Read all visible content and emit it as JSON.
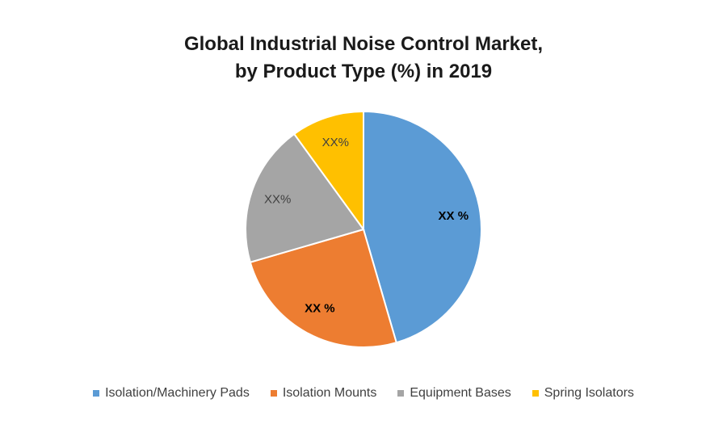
{
  "chart_data": {
    "type": "pie",
    "title_lines": [
      "Global Industrial Noise Control Market,",
      "by Product Type (%) in 2019"
    ],
    "slices": [
      {
        "name": "Isolation/Machinery Pads",
        "value": 45.5,
        "label": "XX %",
        "color": "#5B9BD5",
        "label_color": "#000000",
        "label_bold": true
      },
      {
        "name": "Isolation Mounts",
        "value": 25,
        "label": "XX %",
        "color": "#ED7D31",
        "label_color": "#000000",
        "label_bold": true
      },
      {
        "name": "Equipment Bases",
        "value": 19.5,
        "label": "XX%",
        "color": "#A5A5A5",
        "label_color": "#404040",
        "label_bold": false
      },
      {
        "name": "Spring Isolators",
        "value": 10,
        "label": "XX%",
        "color": "#FFC000",
        "label_color": "#404040",
        "label_bold": false
      }
    ],
    "legend_position": "bottom",
    "start_angle": "12 o'clock",
    "direction": "clockwise"
  }
}
